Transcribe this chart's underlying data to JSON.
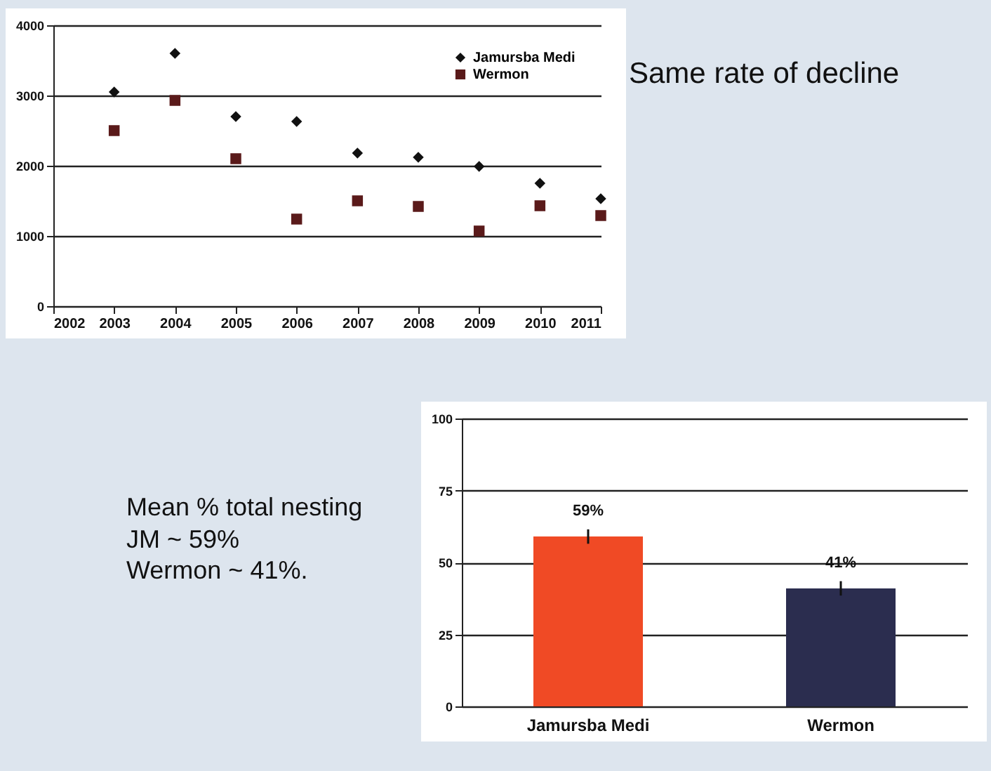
{
  "chart_data": [
    {
      "type": "scatter",
      "x": [
        2003,
        2004,
        2005,
        2006,
        2007,
        2008,
        2009,
        2010,
        2011
      ],
      "xlim": [
        2002,
        2011
      ],
      "xticks": [
        2002,
        2003,
        2004,
        2005,
        2006,
        2007,
        2008,
        2009,
        2010,
        2011
      ],
      "ylim": [
        0,
        4000
      ],
      "yticks": [
        0,
        1000,
        2000,
        3000,
        4000
      ],
      "grid": "y",
      "legend": "top right",
      "series": [
        {
          "name": "Jamursba Medi",
          "color": "#111111",
          "marker": "diamond",
          "values": [
            3050,
            3600,
            2700,
            2630,
            2180,
            2120,
            1990,
            1750,
            1530
          ]
        },
        {
          "name": "Wermon",
          "color": "#5a1a1a",
          "marker": "square",
          "values": [
            2500,
            2930,
            2100,
            1240,
            1500,
            1420,
            1070,
            1430,
            1290
          ]
        }
      ],
      "annotations": [
        "Same rate of decline"
      ]
    },
    {
      "type": "bar",
      "categories": [
        "Jamursba Medi",
        "Wermon"
      ],
      "values": [
        59,
        41
      ],
      "colors": [
        "#f04a25",
        "#2b2d4f"
      ],
      "errors": [
        2.5,
        2.5
      ],
      "value_labels": [
        "59%",
        "41%"
      ],
      "ylim": [
        0,
        100
      ],
      "yticks": [
        0,
        25,
        50,
        75,
        100
      ],
      "grid": "y",
      "annotations": [
        "Mean % total nesting",
        "JM ~ 59%",
        "Wermon ~ 41%."
      ]
    }
  ]
}
